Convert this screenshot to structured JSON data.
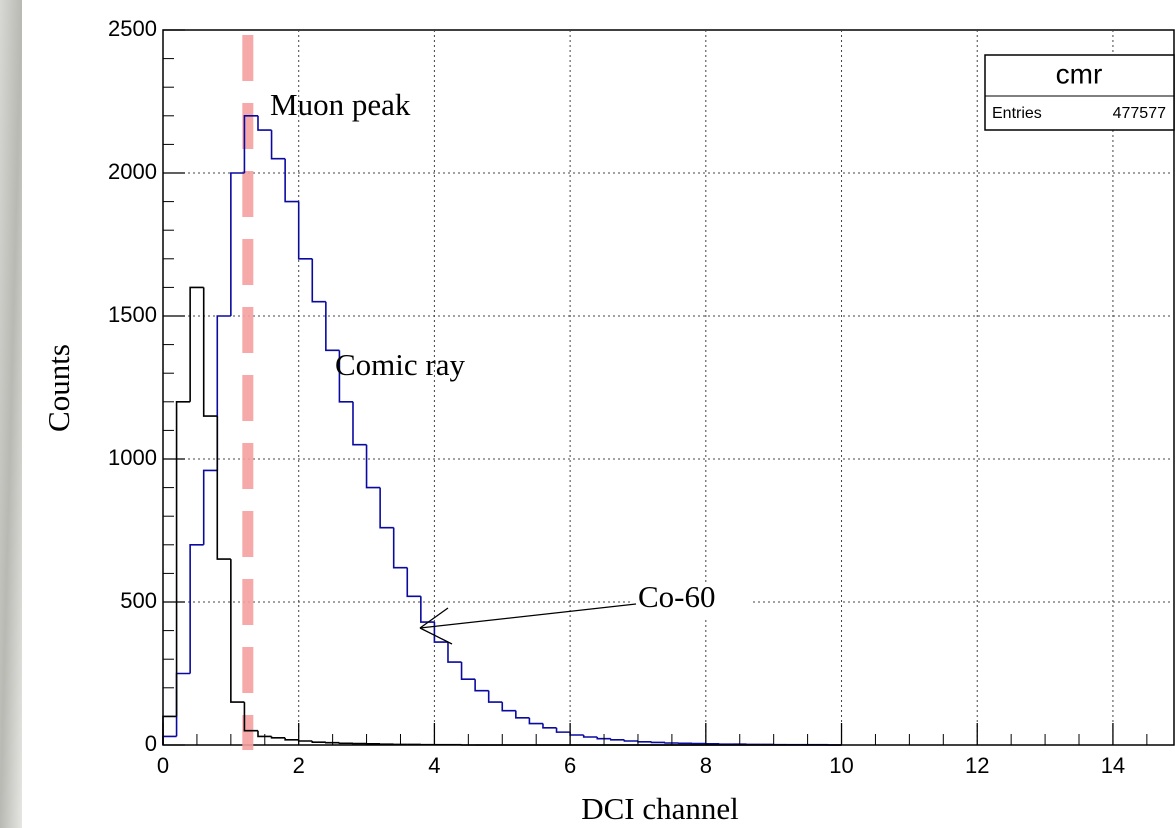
{
  "chart_data": {
    "type": "histogram",
    "x_label": "DCI channel",
    "y_label": "Counts",
    "xlim": [
      0,
      14.9
    ],
    "ylim": [
      0,
      2500
    ],
    "xticks": [
      0,
      2,
      4,
      6,
      8,
      10,
      12,
      14
    ],
    "yticks": [
      0,
      500,
      1000,
      1500,
      2000,
      2500
    ],
    "grid": true,
    "bins": [
      0,
      0.2,
      0.4,
      0.6,
      0.8,
      1,
      1.2,
      1.4,
      1.6,
      1.8,
      2,
      2.2,
      2.4,
      2.6,
      2.8,
      3,
      3.2,
      3.4,
      3.6,
      3.8,
      4,
      4.2,
      4.4,
      4.6,
      4.8,
      5,
      5.2,
      5.4,
      5.6,
      5.8,
      6,
      6.2,
      6.4,
      6.6,
      6.8,
      7,
      7.2,
      7.4,
      7.6,
      7.8,
      8,
      8.2,
      8.4,
      8.6,
      8.8,
      9,
      9.2,
      9.4,
      9.6,
      9.8,
      10
    ],
    "series": [
      {
        "name": "Comic ray",
        "color": "#0a0aa0",
        "values": [
          30,
          250,
          700,
          960,
          1500,
          2000,
          2200,
          2150,
          2050,
          1900,
          1700,
          1550,
          1380,
          1200,
          1050,
          900,
          760,
          620,
          520,
          430,
          360,
          290,
          230,
          190,
          150,
          120,
          95,
          75,
          60,
          45,
          35,
          28,
          22,
          18,
          14,
          11,
          9,
          7,
          6,
          5,
          4,
          3,
          3,
          2,
          2,
          1,
          1,
          1,
          1,
          0
        ]
      },
      {
        "name": "Co-60",
        "color": "#000000",
        "values": [
          100,
          1200,
          1600,
          1150,
          650,
          150,
          50,
          30,
          25,
          18,
          14,
          10,
          8,
          6,
          5,
          4,
          3,
          2,
          2,
          1,
          1,
          1,
          0,
          0,
          0,
          0,
          0,
          0,
          0,
          0,
          0,
          0,
          0,
          0,
          0,
          0,
          0,
          0,
          0,
          0,
          0,
          0,
          0,
          0,
          0,
          0,
          0,
          0,
          0,
          0
        ]
      }
    ],
    "marker_line": {
      "label": "Muon peak",
      "x": 1.25,
      "color": "#f4a0a0"
    },
    "stats": {
      "title": "cmr",
      "entries_label": "Entries",
      "entries": 477577
    }
  }
}
